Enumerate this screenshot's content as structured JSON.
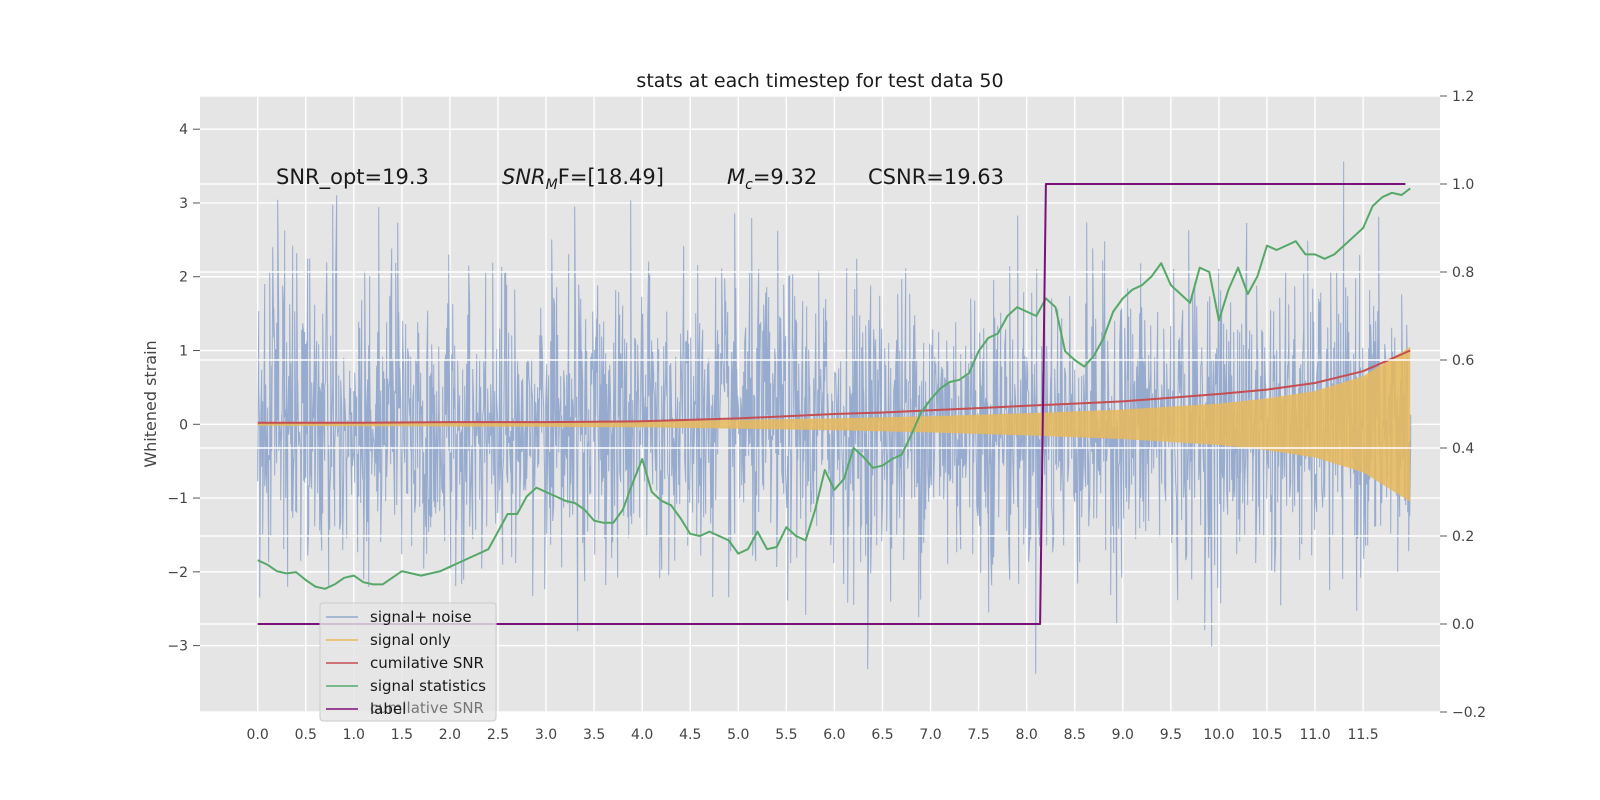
{
  "chart_data": {
    "type": "line",
    "title": "stats at each timestep for test data 50",
    "ylabel": "Whitened strain",
    "xlim": [
      -0.6,
      12.3
    ],
    "ylim": [
      -3.9,
      4.45
    ],
    "y2lim": [
      -0.2,
      1.2
    ],
    "xticks": [
      0.0,
      0.5,
      1.0,
      1.5,
      2.0,
      2.5,
      3.0,
      3.5,
      4.0,
      4.5,
      5.0,
      5.5,
      6.0,
      6.5,
      7.0,
      7.5,
      8.0,
      8.5,
      9.0,
      9.5,
      10.0,
      10.5,
      11.0,
      11.5
    ],
    "xtick_labels": [
      "0.0",
      "0.5",
      "1.0",
      "1.5",
      "2.0",
      "2.5",
      "3.0",
      "3.5",
      "4.0",
      "4.5",
      "5.0",
      "5.5",
      "6.0",
      "6.5",
      "7.0",
      "7.5",
      "8.0",
      "8.5",
      "9.0",
      "9.5",
      "10.0",
      "10.5",
      "11.0",
      "11.5"
    ],
    "yticks": [
      -3,
      -2,
      -1,
      0,
      1,
      2,
      3,
      4
    ],
    "ytick_labels": [
      "−3",
      "−2",
      "−1",
      "0",
      "1",
      "2",
      "3",
      "4"
    ],
    "y2ticks": [
      -0.2,
      0.0,
      0.2,
      0.4,
      0.6,
      0.8,
      1.0,
      1.2
    ],
    "y2tick_labels": [
      "−0.2",
      "0.0",
      "0.2",
      "0.4",
      "0.6",
      "0.8",
      "1.0",
      "1.2"
    ],
    "grid": true,
    "legend_position": "lower-left",
    "annotations": {
      "snr_opt": "SNR_opt=19.3",
      "snr_mf_base": "SNR",
      "snr_mf_sub": "M",
      "snr_mf_rest": "F=[18.49]",
      "mc_base": "M",
      "mc_sub": "c",
      "mc_rest": "=9.32",
      "csnr": "CSNR=19.63"
    },
    "legend_ghost": "cumilative SNR",
    "series": [
      {
        "name": "signal+ noise",
        "axis": "left",
        "color": "#92a8cc",
        "noise_sigma": 1.0,
        "range": [
          0.0,
          11.99
        ]
      },
      {
        "name": "signal only",
        "axis": "left",
        "color": "#e8b95a",
        "envelope_x": [
          0.0,
          2.0,
          4.0,
          6.0,
          7.0,
          8.0,
          9.0,
          10.0,
          10.5,
          11.0,
          11.5,
          11.99
        ],
        "envelope_y": [
          0.02,
          0.03,
          0.04,
          0.08,
          0.11,
          0.15,
          0.2,
          0.28,
          0.35,
          0.45,
          0.65,
          1.05
        ]
      },
      {
        "name": "cumilative SNR",
        "axis": "left",
        "color": "#c44e52",
        "x": [
          0.0,
          1.0,
          2.0,
          3.0,
          4.0,
          5.0,
          5.5,
          6.0,
          6.5,
          7.0,
          7.5,
          8.0,
          8.5,
          9.0,
          9.5,
          10.0,
          10.5,
          11.0,
          11.5,
          11.99
        ],
        "y": [
          0.02,
          0.02,
          0.03,
          0.03,
          0.04,
          0.08,
          0.11,
          0.14,
          0.16,
          0.19,
          0.22,
          0.25,
          0.28,
          0.31,
          0.36,
          0.41,
          0.47,
          0.56,
          0.72,
          1.0
        ]
      },
      {
        "name": "signal statistics",
        "axis": "right",
        "color": "#55a868",
        "x": [
          0.0,
          0.1,
          0.2,
          0.3,
          0.4,
          0.5,
          0.6,
          0.7,
          0.8,
          0.9,
          1.0,
          1.1,
          1.2,
          1.3,
          1.4,
          1.5,
          1.6,
          1.7,
          1.8,
          1.9,
          2.0,
          2.1,
          2.2,
          2.3,
          2.4,
          2.5,
          2.6,
          2.7,
          2.8,
          2.9,
          3.0,
          3.1,
          3.2,
          3.3,
          3.4,
          3.5,
          3.6,
          3.7,
          3.8,
          3.9,
          4.0,
          4.1,
          4.2,
          4.3,
          4.4,
          4.5,
          4.6,
          4.7,
          4.8,
          4.9,
          5.0,
          5.1,
          5.2,
          5.3,
          5.4,
          5.5,
          5.6,
          5.7,
          5.8,
          5.9,
          6.0,
          6.1,
          6.2,
          6.3,
          6.4,
          6.5,
          6.6,
          6.7,
          6.8,
          6.9,
          7.0,
          7.1,
          7.2,
          7.3,
          7.4,
          7.5,
          7.6,
          7.7,
          7.8,
          7.9,
          8.0,
          8.1,
          8.2,
          8.3,
          8.4,
          8.5,
          8.6,
          8.7,
          8.8,
          8.9,
          9.0,
          9.1,
          9.2,
          9.3,
          9.4,
          9.5,
          9.6,
          9.7,
          9.8,
          9.9,
          10.0,
          10.1,
          10.2,
          10.3,
          10.4,
          10.5,
          10.6,
          10.7,
          10.8,
          10.9,
          11.0,
          11.1,
          11.2,
          11.3,
          11.4,
          11.5,
          11.6,
          11.7,
          11.8,
          11.9,
          11.99
        ],
        "y": [
          0.145,
          0.135,
          0.12,
          0.115,
          0.118,
          0.1,
          0.085,
          0.08,
          0.09,
          0.105,
          0.11,
          0.095,
          0.09,
          0.09,
          0.105,
          0.12,
          0.115,
          0.11,
          0.115,
          0.12,
          0.13,
          0.14,
          0.15,
          0.16,
          0.17,
          0.21,
          0.25,
          0.25,
          0.29,
          0.31,
          0.3,
          0.29,
          0.28,
          0.275,
          0.26,
          0.235,
          0.23,
          0.23,
          0.26,
          0.32,
          0.375,
          0.3,
          0.28,
          0.27,
          0.24,
          0.205,
          0.2,
          0.21,
          0.2,
          0.19,
          0.16,
          0.17,
          0.21,
          0.17,
          0.175,
          0.22,
          0.2,
          0.19,
          0.26,
          0.35,
          0.305,
          0.33,
          0.4,
          0.38,
          0.355,
          0.36,
          0.375,
          0.385,
          0.43,
          0.48,
          0.51,
          0.535,
          0.55,
          0.555,
          0.57,
          0.62,
          0.65,
          0.66,
          0.7,
          0.72,
          0.71,
          0.7,
          0.74,
          0.72,
          0.62,
          0.6,
          0.585,
          0.61,
          0.65,
          0.71,
          0.74,
          0.76,
          0.77,
          0.79,
          0.82,
          0.77,
          0.75,
          0.73,
          0.81,
          0.8,
          0.69,
          0.76,
          0.81,
          0.75,
          0.79,
          0.86,
          0.85,
          0.86,
          0.87,
          0.84,
          0.84,
          0.83,
          0.84,
          0.86,
          0.88,
          0.9,
          0.95,
          0.97,
          0.98,
          0.975,
          0.99
        ]
      },
      {
        "name": "label",
        "axis": "right",
        "color": "#7b1177",
        "x": [
          0.0,
          8.14,
          8.2,
          11.94
        ],
        "y": [
          0.0,
          0.0,
          1.0,
          1.0
        ]
      }
    ]
  }
}
